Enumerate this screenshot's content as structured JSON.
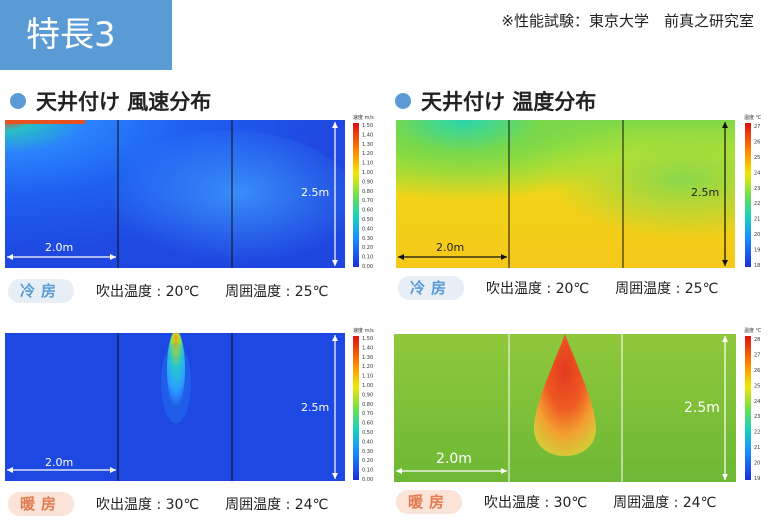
{
  "badge": {
    "label": "特長3"
  },
  "credit": "※性能試験：東京大学　前真之研究室",
  "colors": {
    "accent": "#5a9bd5",
    "cool_pill_bg": "#e7eef6",
    "heat_pill_bg": "#fbe3d8",
    "heat_pill_text": "#e07a4f"
  },
  "sections": [
    {
      "title": "天井付け 風速分布"
    },
    {
      "title": "天井付け 温度分布"
    }
  ],
  "panels": {
    "speed_cool": {
      "width_label": "2.0m",
      "height_label": "2.5m",
      "colorbar": {
        "unit": "速度 m/s",
        "ticks": [
          "1.50",
          "1.40",
          "1.30",
          "1.20",
          "1.10",
          "1.00",
          "0.90",
          "0.80",
          "0.70",
          "0.60",
          "0.50",
          "0.40",
          "0.30",
          "0.20",
          "0.10",
          "0.00"
        ]
      }
    },
    "temp_cool": {
      "width_label": "2.0m",
      "height_label": "2.5m",
      "colorbar": {
        "unit": "温度 ℃",
        "ticks": [
          "27",
          "26",
          "25",
          "24",
          "23",
          "22",
          "21",
          "20",
          "19",
          "18"
        ]
      }
    },
    "speed_heat": {
      "width_label": "2.0m",
      "height_label": "2.5m",
      "colorbar": {
        "unit": "速度 m/s",
        "ticks": [
          "1.50",
          "1.40",
          "1.30",
          "1.20",
          "1.10",
          "1.00",
          "0.90",
          "0.80",
          "0.70",
          "0.60",
          "0.50",
          "0.40",
          "0.30",
          "0.20",
          "0.10",
          "0.00"
        ]
      }
    },
    "temp_heat": {
      "width_label": "2.0m",
      "height_label": "2.5m",
      "colorbar": {
        "unit": "温度 ℃",
        "ticks": [
          "28",
          "27",
          "26",
          "25",
          "24",
          "23",
          "22",
          "21",
          "20",
          "19"
        ]
      }
    }
  },
  "conditions": {
    "cool_left": {
      "mode": "冷房",
      "outlet": "吹出温度 : 20℃",
      "ambient": "周囲温度 : 25℃"
    },
    "cool_right": {
      "mode": "冷房",
      "outlet": "吹出温度 : 20℃",
      "ambient": "周囲温度 : 25℃"
    },
    "heat_left": {
      "mode": "暖房",
      "outlet": "吹出温度 : 30℃",
      "ambient": "周囲温度 : 24℃"
    },
    "heat_right": {
      "mode": "暖房",
      "outlet": "吹出温度 : 30℃",
      "ambient": "周囲温度 : 24℃"
    }
  }
}
